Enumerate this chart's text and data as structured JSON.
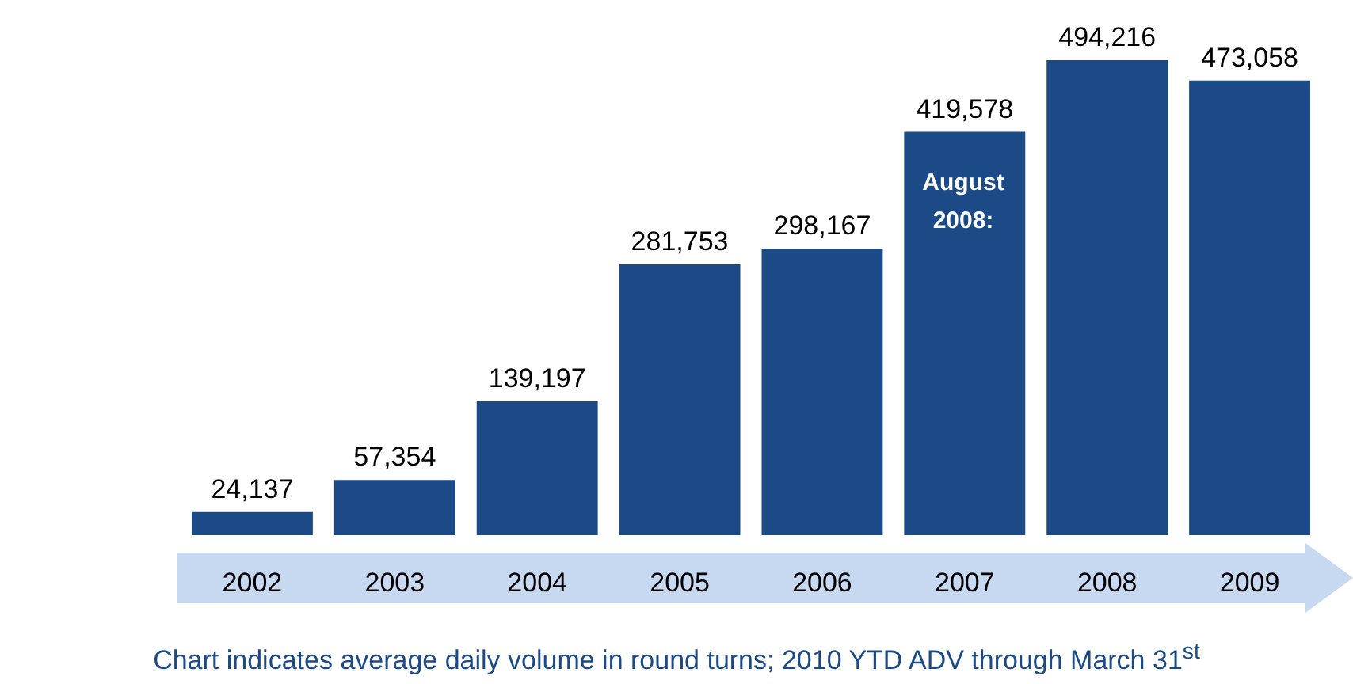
{
  "chart_data": {
    "type": "bar",
    "categories": [
      "2002",
      "2003",
      "2004",
      "2005",
      "2006",
      "2007",
      "2008",
      "2009"
    ],
    "values": [
      24137,
      57354,
      139197,
      281753,
      298167,
      419578,
      494216,
      473058
    ],
    "value_labels": [
      "24,137",
      "57,354",
      "139,197",
      "281,753",
      "298,167",
      "419,578",
      "494,216",
      "473,058"
    ],
    "color": "#1b4a86",
    "annotations": [
      "August 2008:",
      "Chart indicates average daily volume in round turns; 2010 YTD  ADV through March 31$^{st}$"
    ]
  }
}
